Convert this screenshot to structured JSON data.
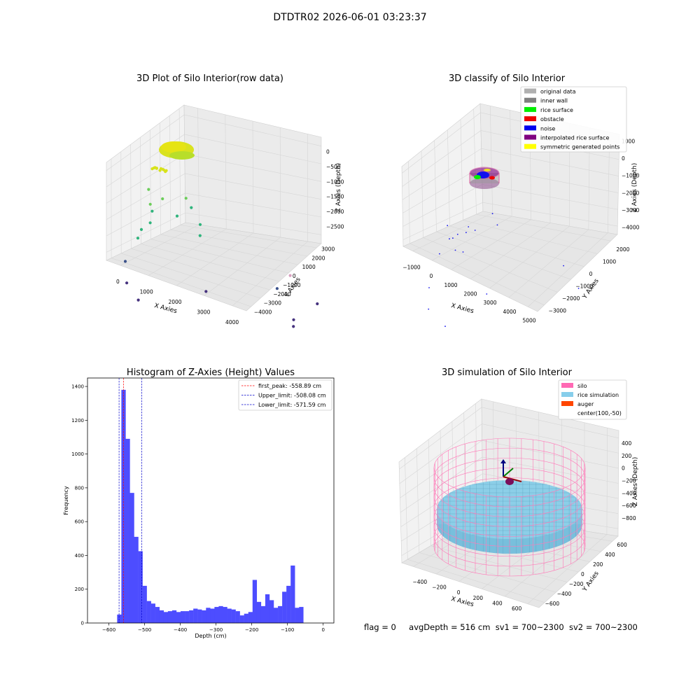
{
  "suptitle": "DTDTR02 2026-06-01 03:23:37",
  "chart_data": [
    {
      "type": "scatter",
      "projection": "3d",
      "title": "3D Plot of Silo Interior(row data)",
      "xlabel": "X Axies",
      "ylabel": "Y Axies",
      "zlabel": "Z Axies (Depth)",
      "x_ticks": [
        "0",
        "1000",
        "2000",
        "3000",
        "4000"
      ],
      "y_ticks": [
        "−4000",
        "−3000",
        "−2000",
        "−1000",
        "0",
        "1000",
        "2000",
        "3000"
      ],
      "z_ticks": [
        "0",
        "−500",
        "−1000",
        "−1500",
        "−2000",
        "−2500"
      ],
      "colormap": "viridis (by depth)",
      "colors": [
        "#d7e21a",
        "#6ccd5a",
        "#2fb47c",
        "#3b528b",
        "#46327e",
        "#d8a0c0"
      ],
      "points": [
        {
          "x": 200,
          "y": -400,
          "z": -150
        },
        {
          "x": 300,
          "y": -350,
          "z": -120
        },
        {
          "x": 400,
          "y": -300,
          "z": -100
        },
        {
          "x": 500,
          "y": -200,
          "z": -130
        },
        {
          "x": 350,
          "y": -100,
          "z": -160
        },
        {
          "x": 250,
          "y": -250,
          "z": -140
        },
        {
          "x": 450,
          "y": -450,
          "z": -110
        },
        {
          "x": 150,
          "y": -150,
          "z": -170
        },
        {
          "x": 550,
          "y": -350,
          "z": -120
        },
        {
          "x": 300,
          "y": -500,
          "z": -90
        },
        {
          "x": 400,
          "y": -150,
          "z": -150
        },
        {
          "x": 200,
          "y": -600,
          "z": -600
        },
        {
          "x": 300,
          "y": -700,
          "z": -900
        },
        {
          "x": 250,
          "y": -500,
          "z": -1100
        },
        {
          "x": 350,
          "y": -800,
          "z": -1300
        },
        {
          "x": 150,
          "y": -900,
          "z": -1500
        },
        {
          "x": 600,
          "y": -600,
          "z": -700
        },
        {
          "x": 700,
          "y": 500,
          "z": -800
        },
        {
          "x": 800,
          "y": 600,
          "z": -1000
        },
        {
          "x": 600,
          "y": 200,
          "z": -1200
        },
        {
          "x": 900,
          "y": 900,
          "z": -1400
        },
        {
          "x": 1000,
          "y": 700,
          "z": -1600
        },
        {
          "x": 100,
          "y": -1000,
          "z": -1700
        },
        {
          "x": 0,
          "y": -1500,
          "z": -2200
        },
        {
          "x": 200,
          "y": -1800,
          "z": -2600
        },
        {
          "x": 900,
          "y": -2500,
          "z": -2700
        },
        {
          "x": 1800,
          "y": -500,
          "z": -2500
        },
        {
          "x": 2800,
          "y": 1500,
          "z": -2400
        },
        {
          "x": 3800,
          "y": 1800,
          "z": -2500
        },
        {
          "x": 3800,
          "y": 500,
          "z": -2700
        },
        {
          "x": 3900,
          "y": 300,
          "z": -2800
        },
        {
          "x": 2600,
          "y": 2600,
          "z": -2300
        }
      ]
    },
    {
      "type": "scatter",
      "projection": "3d",
      "title": "3D classify of Silo Interior",
      "xlabel": "X Axies",
      "ylabel": "Y Axies",
      "zlabel": "Z Axies (Depth)",
      "x_ticks": [
        "−1000",
        "0",
        "1000",
        "2000",
        "3000",
        "4000",
        "5000"
      ],
      "y_ticks": [
        "−3000",
        "−2000",
        "−1000",
        "0",
        "1000",
        "2000"
      ],
      "z_ticks": [
        "1000",
        "0",
        "−1000",
        "−2000",
        "−3000",
        "−4000"
      ],
      "legend_position": "top-right",
      "legend": [
        {
          "label": "original data",
          "color": "#b0b0b0"
        },
        {
          "label": "inner wall",
          "color": "#808080"
        },
        {
          "label": "rice surface",
          "color": "#00ee00"
        },
        {
          "label": "obstacle",
          "color": "#ee0000"
        },
        {
          "label": "noise",
          "color": "#0000ee"
        },
        {
          "label": "interpolated rice surface",
          "color": "#800080"
        },
        {
          "label": "symmetric generated points",
          "color": "#ffff00"
        }
      ],
      "noise_points": [
        {
          "x": 200,
          "y": -500,
          "z": -600
        },
        {
          "x": 400,
          "y": -800,
          "z": -900
        },
        {
          "x": 300,
          "y": -300,
          "z": -1200
        },
        {
          "x": 600,
          "y": -600,
          "z": -800
        },
        {
          "x": 100,
          "y": -900,
          "z": -1500
        },
        {
          "x": 800,
          "y": -200,
          "z": -700
        },
        {
          "x": 900,
          "y": 100,
          "z": -1000
        },
        {
          "x": 0,
          "y": -1500,
          "z": -2500
        },
        {
          "x": 200,
          "y": -2000,
          "z": -3000
        },
        {
          "x": 1000,
          "y": -2500,
          "z": -3200
        },
        {
          "x": 1700,
          "y": -800,
          "z": -2800
        },
        {
          "x": 3500,
          "y": 1200,
          "z": -2500
        },
        {
          "x": 4200,
          "y": 800,
          "z": -3000
        },
        {
          "x": 1500,
          "y": 500,
          "z": -900
        },
        {
          "x": 1200,
          "y": 800,
          "z": -700
        },
        {
          "x": 500,
          "y": 300,
          "z": -1300
        },
        {
          "x": 700,
          "y": -400,
          "z": -1600
        },
        {
          "x": 300,
          "y": -100,
          "z": -1800
        }
      ]
    },
    {
      "type": "histogram",
      "title": "Histogram of Z-Axies (Height) Values",
      "xlabel": "Depth (cm)",
      "ylabel": "Frequency",
      "xlim": [
        -660,
        30
      ],
      "ylim": [
        0,
        1450
      ],
      "x_ticks": [
        -600,
        -500,
        -400,
        -300,
        -200,
        -100,
        0
      ],
      "y_ticks": [
        0,
        200,
        400,
        600,
        800,
        1000,
        1200,
        1400
      ],
      "bar_color": "#4d4dff",
      "bin_start": -577,
      "bin_width": 11.85,
      "values": [
        50,
        1380,
        1090,
        770,
        510,
        425,
        220,
        130,
        115,
        95,
        75,
        65,
        70,
        75,
        65,
        70,
        70,
        75,
        85,
        80,
        75,
        90,
        85,
        95,
        100,
        95,
        85,
        80,
        70,
        45,
        55,
        65,
        255,
        125,
        100,
        170,
        135,
        90,
        100,
        185,
        220,
        340,
        90,
        95
      ],
      "lines": [
        {
          "label": "first_peak: -558.89 cm",
          "x": -558.89,
          "color": "#ff0000"
        },
        {
          "label": "Upper_limit: -508.08 cm",
          "x": -508.08,
          "color": "#0000cc"
        },
        {
          "label": "Lower_limit: -571.59 cm",
          "x": -571.59,
          "color": "#0000cc"
        }
      ],
      "legend_position": "top-right"
    },
    {
      "type": "surface",
      "projection": "3d",
      "title": "3D simulation of Silo Interior",
      "xlabel": "X Axies",
      "ylabel": "Y Axies",
      "zlabel": "Z Axies (Depth)",
      "x_ticks": [
        "−400",
        "−200",
        "0",
        "200",
        "400",
        "600"
      ],
      "y_ticks": [
        "−600",
        "−400",
        "−200",
        "0",
        "200",
        "400",
        "600"
      ],
      "z_ticks": [
        "400",
        "200",
        "0",
        "−200",
        "−400",
        "−600",
        "−800"
      ],
      "legend_position": "top-right",
      "legend": [
        {
          "label": "silo",
          "color": "#ff69b4"
        },
        {
          "label": "rice simulation",
          "color": "#87ceeb"
        },
        {
          "label": "auger",
          "color": "#ff4500"
        },
        {
          "label": "center(100,-50)",
          "color": ""
        }
      ]
    }
  ],
  "footer": {
    "flag": "flag = 0",
    "avg": "avgDepth = 516 cm",
    "sv1": "sv1 = 700~2300",
    "sv2": "sv2 = 700~2300"
  }
}
